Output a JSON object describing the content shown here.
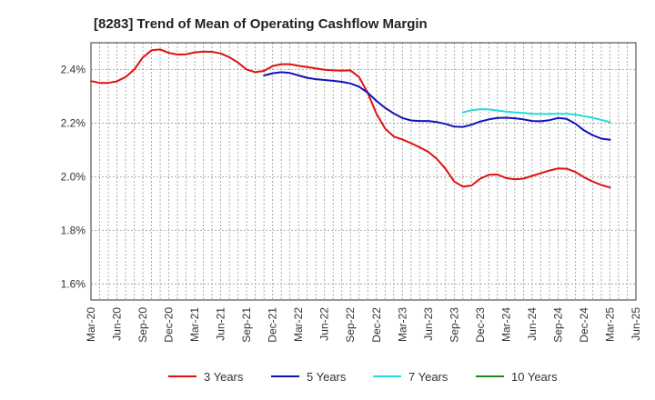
{
  "chart_data": {
    "type": "line",
    "title": "[8283]  Trend of Mean of Operating Cashflow Margin",
    "xlabel": "",
    "ylabel": "",
    "x_tick_labels": [
      "Mar-20",
      "Jun-20",
      "Sep-20",
      "Dec-20",
      "Mar-21",
      "Jun-21",
      "Sep-21",
      "Dec-21",
      "Mar-22",
      "Jun-22",
      "Sep-22",
      "Dec-22",
      "Mar-23",
      "Jun-23",
      "Sep-23",
      "Dec-23",
      "Mar-24",
      "Jun-24",
      "Sep-24",
      "Dec-24",
      "Mar-25",
      "Jun-25"
    ],
    "y_tick_labels": [
      "1.6%",
      "1.8%",
      "2.0%",
      "2.2%",
      "2.4%"
    ],
    "y_ticks": [
      1.6,
      1.8,
      2.0,
      2.2,
      2.4
    ],
    "ylim": [
      1.54,
      2.5
    ],
    "x_unit": "months since Mar-20",
    "xlim": [
      0,
      63
    ],
    "grid": true,
    "legend_position": "bottom",
    "colors": {
      "3 Years": "#dd1111",
      "5 Years": "#1111bb",
      "7 Years": "#22dddd",
      "10 Years": "#228822"
    },
    "series": [
      {
        "name": "3 Years",
        "color": "#dd1111",
        "x": [
          0,
          1,
          2,
          3,
          4,
          5,
          6,
          7,
          8,
          9,
          10,
          11,
          12,
          13,
          14,
          15,
          16,
          17,
          18,
          19,
          20,
          21,
          22,
          23,
          24,
          25,
          26,
          27,
          28,
          29,
          30,
          31,
          32,
          33,
          34,
          35,
          36,
          37,
          38,
          39,
          40,
          41,
          42,
          43,
          44,
          45,
          46,
          47,
          48,
          49,
          50,
          51,
          52,
          53,
          54,
          55,
          56,
          57,
          58,
          59,
          60
        ],
        "y": [
          2.357,
          2.35,
          2.35,
          2.356,
          2.372,
          2.4,
          2.445,
          2.472,
          2.475,
          2.462,
          2.456,
          2.457,
          2.464,
          2.467,
          2.466,
          2.46,
          2.446,
          2.426,
          2.4,
          2.39,
          2.395,
          2.413,
          2.42,
          2.42,
          2.414,
          2.409,
          2.404,
          2.399,
          2.397,
          2.396,
          2.397,
          2.372,
          2.312,
          2.235,
          2.18,
          2.15,
          2.139,
          2.125,
          2.11,
          2.093,
          2.066,
          2.029,
          1.982,
          1.963,
          1.967,
          1.993,
          2.007,
          2.008,
          1.995,
          1.99,
          1.993,
          2.003,
          2.013,
          2.023,
          2.031,
          2.03,
          2.018,
          1.998,
          1.982,
          1.969,
          1.96
        ]
      },
      {
        "name": "5 Years",
        "color": "#1111bb",
        "x": [
          20,
          21,
          22,
          23,
          24,
          25,
          26,
          27,
          28,
          29,
          30,
          31,
          32,
          33,
          34,
          35,
          36,
          37,
          38,
          39,
          40,
          41,
          42,
          43,
          44,
          45,
          46,
          47,
          48,
          49,
          50,
          51,
          52,
          53,
          54,
          55,
          56,
          57,
          58,
          59,
          60
        ],
        "y": [
          2.378,
          2.386,
          2.39,
          2.387,
          2.378,
          2.369,
          2.364,
          2.361,
          2.358,
          2.354,
          2.348,
          2.336,
          2.313,
          2.283,
          2.257,
          2.236,
          2.219,
          2.21,
          2.208,
          2.208,
          2.204,
          2.197,
          2.187,
          2.186,
          2.194,
          2.206,
          2.214,
          2.219,
          2.22,
          2.218,
          2.214,
          2.208,
          2.207,
          2.211,
          2.219,
          2.216,
          2.198,
          2.173,
          2.155,
          2.142,
          2.138
        ]
      },
      {
        "name": "7 Years",
        "color": "#22dddd",
        "x": [
          43,
          44,
          45,
          46,
          47,
          48,
          49,
          50,
          51,
          52,
          53,
          54,
          55,
          56,
          57,
          58,
          59,
          60
        ],
        "y": [
          2.24,
          2.248,
          2.252,
          2.251,
          2.247,
          2.243,
          2.24,
          2.238,
          2.235,
          2.234,
          2.234,
          2.235,
          2.235,
          2.232,
          2.226,
          2.22,
          2.212,
          2.204
        ]
      },
      {
        "name": "10 Years",
        "color": "#228822",
        "x": [],
        "y": []
      }
    ]
  }
}
